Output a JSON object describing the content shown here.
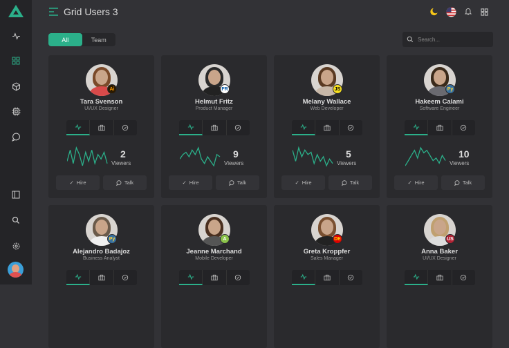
{
  "header": {
    "title": "Grid Users 3",
    "search_placeholder": "Search..."
  },
  "tabs": [
    {
      "label": "All",
      "active": true
    },
    {
      "label": "Team",
      "active": false
    }
  ],
  "accent": "#2bb08a",
  "sidebar": {
    "items": [
      "activity-icon",
      "grid-icon",
      "box-icon",
      "cpu-icon",
      "message-icon"
    ],
    "bottom": [
      "panel-icon",
      "search-icon",
      "settings-icon",
      "avatar"
    ]
  },
  "cards": [
    {
      "name": "Tara Svenson",
      "role": "UI/UX Designer",
      "badge": "Ai",
      "badge_bg": "#2b1a00",
      "badge_fg": "#ff9a00",
      "hair": "#7a4a2a",
      "shirt": "#d84a4a",
      "viewers": "2",
      "viewers_label": "Viewers",
      "hire": "Hire",
      "talk": "Talk",
      "spark": [
        3,
        8,
        2,
        9,
        6,
        1,
        7,
        3,
        8,
        2,
        6,
        4,
        7,
        2
      ]
    },
    {
      "name": "Helmut Fritz",
      "role": "Product Manager",
      "badge": "FR",
      "badge_bg": "#fff",
      "badge_fg": "#0055a4",
      "hair": "#2a2a2a",
      "shirt": "#222",
      "viewers": "9",
      "viewers_label": "Viewers",
      "hire": "Hire",
      "talk": "Talk",
      "spark": [
        4,
        6,
        7,
        5,
        8,
        6,
        9,
        4,
        2,
        5,
        3,
        1,
        6,
        5
      ]
    },
    {
      "name": "Melany Wallace",
      "role": "Web Developer",
      "badge": "JS",
      "badge_bg": "#f7df1e",
      "badge_fg": "#000",
      "hair": "#5a3a22",
      "shirt": "#c8b8a8",
      "viewers": "5",
      "viewers_label": "Viewers",
      "hire": "Hire",
      "talk": "Talk",
      "spark": [
        8,
        3,
        9,
        5,
        8,
        6,
        7,
        2,
        6,
        3,
        5,
        1,
        4,
        2
      ]
    },
    {
      "name": "Hakeem Calami",
      "role": "Software Engineer",
      "badge": "Py",
      "badge_bg": "#3670a0",
      "badge_fg": "#ffd43b",
      "hair": "#3a2a1a",
      "shirt": "#6a6a70",
      "viewers": "10",
      "viewers_label": "Viewers",
      "hire": "Hire",
      "talk": "Talk",
      "spark": [
        2,
        4,
        6,
        8,
        5,
        9,
        7,
        8,
        6,
        4,
        5,
        3,
        6,
        4
      ]
    },
    {
      "name": "Alejandro Badajoz",
      "role": "Business Analyst",
      "badge": "Py",
      "badge_bg": "#3670a0",
      "badge_fg": "#ffd43b",
      "hair": "#6a5a4a",
      "shirt": "#f0f0f0",
      "viewers": "",
      "viewers_label": "",
      "hire": "",
      "talk": "",
      "spark": []
    },
    {
      "name": "Jeanne Marchand",
      "role": "Mobile Developer",
      "badge": "A",
      "badge_bg": "#8bc34a",
      "badge_fg": "#fff",
      "hair": "#4a3020",
      "shirt": "#555",
      "viewers": "",
      "viewers_label": "",
      "hire": "",
      "talk": "",
      "spark": []
    },
    {
      "name": "Greta Kroppfer",
      "role": "Sales Manager",
      "badge": "DE",
      "badge_bg": "#dd0000",
      "badge_fg": "#ffce00",
      "hair": "#7a5030",
      "shirt": "#222",
      "viewers": "",
      "viewers_label": "",
      "hire": "",
      "talk": "",
      "spark": []
    },
    {
      "name": "Anna Baker",
      "role": "UI/UX Designer",
      "badge": "US",
      "badge_bg": "#b22234",
      "badge_fg": "#fff",
      "hair": "#c0a070",
      "shirt": "#ddd",
      "viewers": "",
      "viewers_label": "",
      "hire": "",
      "talk": "",
      "spark": []
    }
  ]
}
